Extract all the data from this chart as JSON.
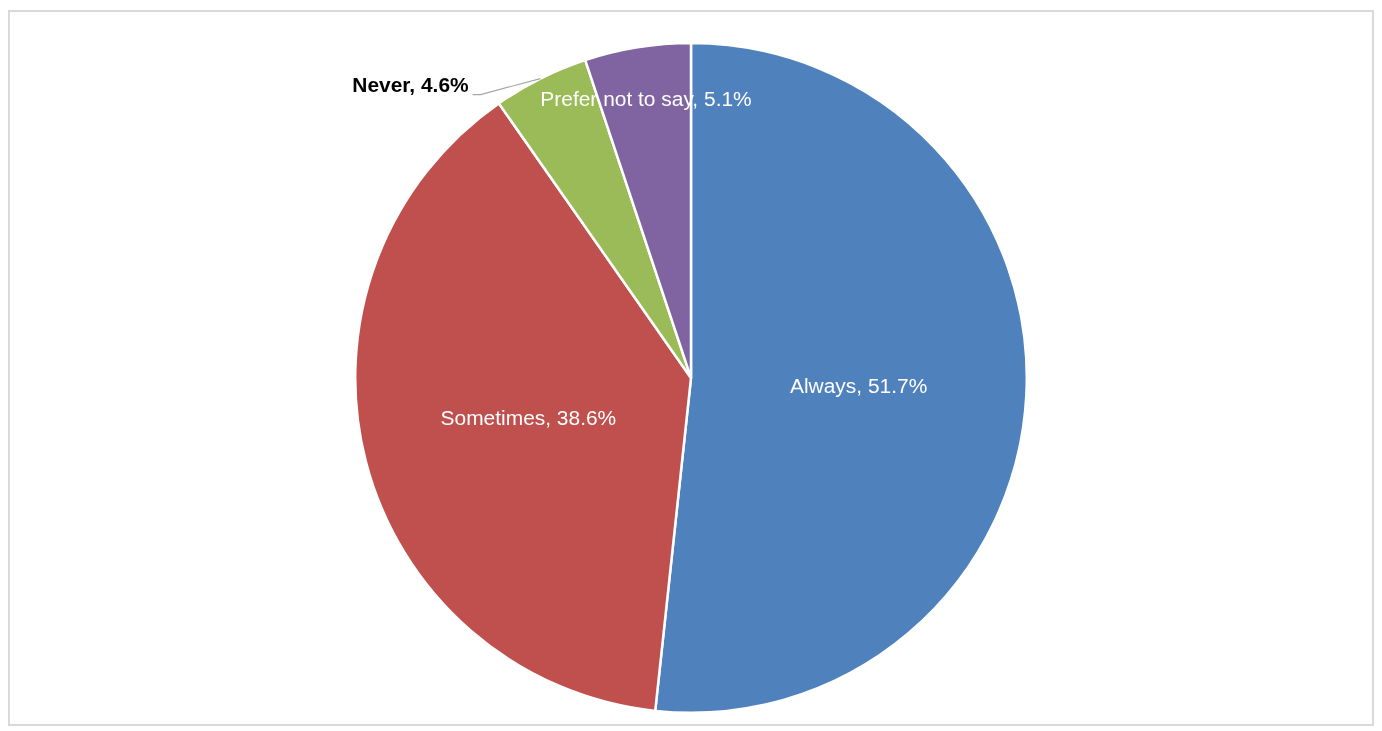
{
  "chart_data": {
    "type": "pie",
    "categories": [
      "Always",
      "Sometimes",
      "Never",
      "Prefer not to say"
    ],
    "values": [
      51.7,
      38.6,
      4.6,
      5.1
    ],
    "colors": [
      "#4f81bd",
      "#c0504d",
      "#9bbb59",
      "#8064a2"
    ],
    "value_labels": [
      "51.7%",
      "38.6%",
      "4.6%",
      "5.1%"
    ],
    "legend": false
  }
}
